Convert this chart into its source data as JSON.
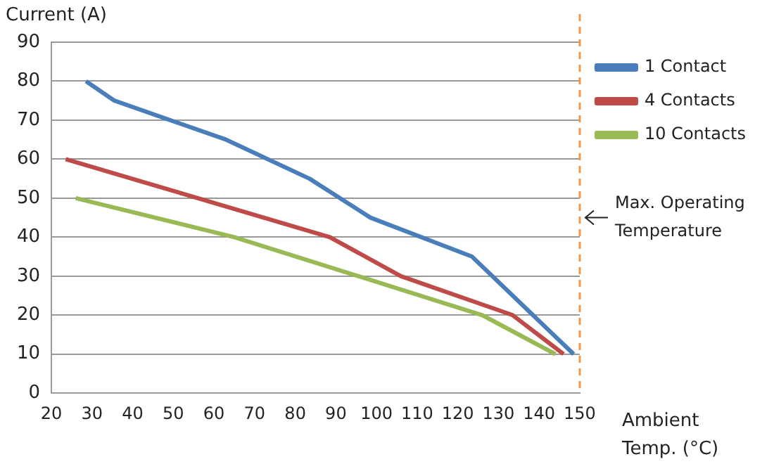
{
  "chart_data": {
    "type": "line",
    "xlabel": "Ambient\nTemp. (°C)",
    "ylabel": "Current (A)",
    "series": [
      {
        "name": "1 Contact",
        "color": "#4a7ebb",
        "x": [
          28.5,
          35.5,
          63,
          83.5,
          98.5,
          123.5,
          148.5
        ],
        "values": [
          80,
          75,
          65,
          55,
          45,
          35,
          10
        ]
      },
      {
        "name": "4 Contacts",
        "color": "#be4b48",
        "x": [
          23.5,
          88.5,
          106,
          133.5,
          146
        ],
        "values": [
          60,
          40,
          30,
          20,
          10
        ]
      },
      {
        "name": "10 Contacts",
        "color": "#98b954",
        "x": [
          26,
          65,
          126,
          144
        ],
        "values": [
          50,
          40,
          20,
          10
        ]
      }
    ],
    "xlim": [
      20,
      150
    ],
    "xticks": [
      20,
      30,
      40,
      50,
      60,
      70,
      80,
      90,
      100,
      110,
      120,
      130,
      140,
      150
    ],
    "ylim": [
      0,
      90
    ],
    "yticks": [
      0,
      10,
      20,
      30,
      40,
      50,
      60,
      70,
      80,
      90
    ],
    "grid": "y",
    "legend": "right",
    "marker": "none",
    "line_style": "solid",
    "ref_lines": [
      {
        "axis": "x",
        "value": 150,
        "label": "Max. Operating\nTemperature",
        "color": "#f79646",
        "line_style": "dashed"
      }
    ]
  }
}
